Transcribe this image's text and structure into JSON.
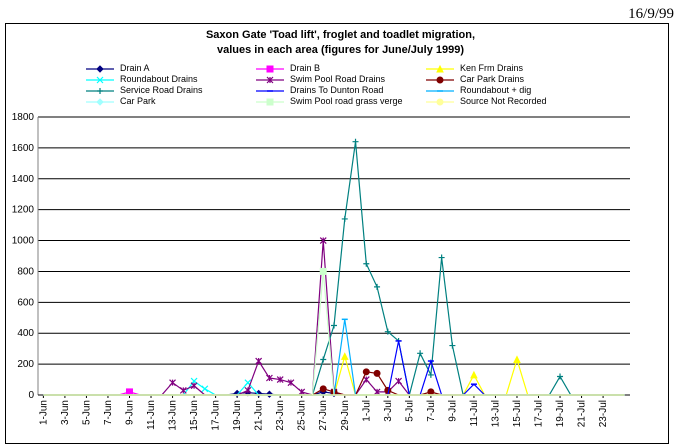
{
  "header": {
    "date": "16/9/99"
  },
  "chart_data": {
    "type": "line",
    "title": "Saxon Gate 'Toad lift', froglet and toadlet migration,",
    "subtitle": "values in each area (figures for June/July 1999)",
    "xlabel": "",
    "ylabel": "",
    "ylim": [
      0,
      1800
    ],
    "yticks": [
      0,
      200,
      400,
      600,
      800,
      1000,
      1200,
      1400,
      1600,
      1800
    ],
    "grid": "horizontal",
    "legend": "top",
    "categories": [
      "1-Jun",
      "2-Jun",
      "3-Jun",
      "4-Jun",
      "5-Jun",
      "6-Jun",
      "7-Jun",
      "8-Jun",
      "9-Jun",
      "10-Jun",
      "11-Jun",
      "12-Jun",
      "13-Jun",
      "14-Jun",
      "15-Jun",
      "16-Jun",
      "17-Jun",
      "18-Jun",
      "19-Jun",
      "20-Jun",
      "21-Jun",
      "22-Jun",
      "23-Jun",
      "24-Jun",
      "25-Jun",
      "26-Jun",
      "27-Jun",
      "28-Jun",
      "29-Jun",
      "30-Jun",
      "1-Jul",
      "2-Jul",
      "3-Jul",
      "4-Jul",
      "5-Jul",
      "6-Jul",
      "7-Jul",
      "8-Jul",
      "9-Jul",
      "10-Jul",
      "11-Jul",
      "12-Jul",
      "13-Jul",
      "14-Jul",
      "15-Jul",
      "16-Jul",
      "17-Jul",
      "18-Jul",
      "19-Jul",
      "20-Jul",
      "21-Jul",
      "22-Jul",
      "23-Jul",
      "24-Jul",
      "25-Jul"
    ],
    "xtick_labels": [
      "1-Jun",
      "3-Jun",
      "5-Jun",
      "7-Jun",
      "9-Jun",
      "11-Jun",
      "13-Jun",
      "15-Jun",
      "17-Jun",
      "19-Jun",
      "21-Jun",
      "23-Jun",
      "25-Jun",
      "27-Jun",
      "29-Jun",
      "1-Jul",
      "3-Jul",
      "5-Jul",
      "7-Jul",
      "9-Jul",
      "11-Jul",
      "13-Jul",
      "15-Jul",
      "17-Jul",
      "19-Jul",
      "21-Jul",
      "23-Jul"
    ],
    "series": [
      {
        "name": "Drain A",
        "color": "#000080",
        "marker": "diamond",
        "dash": "",
        "values": [
          0,
          0,
          0,
          0,
          0,
          0,
          0,
          0,
          0,
          0,
          0,
          0,
          0,
          0,
          0,
          0,
          0,
          0,
          10,
          15,
          10,
          5,
          0,
          0,
          0,
          0,
          20,
          10,
          0,
          0,
          0,
          0,
          0,
          0,
          0,
          0,
          0,
          0,
          0,
          0,
          0,
          0,
          0,
          0,
          0,
          0,
          0,
          0,
          0,
          0,
          0,
          0,
          0,
          0,
          0
        ]
      },
      {
        "name": "Drain B",
        "color": "#ff00ff",
        "marker": "square",
        "dash": "",
        "values": [
          0,
          0,
          0,
          0,
          0,
          0,
          0,
          0,
          20,
          0,
          0,
          0,
          0,
          0,
          0,
          0,
          0,
          0,
          0,
          0,
          0,
          0,
          0,
          0,
          0,
          0,
          0,
          0,
          0,
          0,
          0,
          0,
          0,
          0,
          0,
          0,
          0,
          0,
          0,
          0,
          0,
          0,
          0,
          0,
          0,
          0,
          0,
          0,
          0,
          0,
          0,
          0,
          0,
          0,
          0
        ]
      },
      {
        "name": "Ken Frm Drains",
        "color": "#ffff00",
        "marker": "triangle",
        "dash": "",
        "values": [
          0,
          0,
          0,
          0,
          0,
          0,
          0,
          0,
          0,
          0,
          0,
          0,
          0,
          0,
          0,
          0,
          0,
          0,
          0,
          0,
          0,
          0,
          0,
          0,
          0,
          0,
          0,
          0,
          250,
          0,
          0,
          0,
          0,
          0,
          0,
          0,
          0,
          0,
          0,
          0,
          130,
          0,
          0,
          0,
          230,
          0,
          0,
          0,
          0,
          0,
          0,
          0,
          0,
          0,
          0
        ]
      },
      {
        "name": "Roundabout Drains",
        "color": "#00ffff",
        "marker": "x",
        "dash": "",
        "values": [
          0,
          0,
          0,
          0,
          0,
          0,
          0,
          0,
          0,
          0,
          0,
          0,
          0,
          0,
          90,
          40,
          0,
          0,
          0,
          80,
          0,
          0,
          0,
          0,
          0,
          0,
          0,
          0,
          0,
          0,
          0,
          0,
          0,
          0,
          0,
          0,
          0,
          0,
          0,
          0,
          0,
          0,
          0,
          0,
          0,
          0,
          0,
          0,
          0,
          0,
          0,
          0,
          0,
          0,
          0
        ]
      },
      {
        "name": "Swim Pool Road Drains",
        "color": "#800080",
        "marker": "star",
        "dash": "",
        "values": [
          0,
          0,
          0,
          0,
          0,
          0,
          0,
          0,
          0,
          0,
          0,
          0,
          80,
          30,
          60,
          0,
          0,
          0,
          0,
          30,
          220,
          110,
          100,
          80,
          20,
          0,
          1000,
          20,
          0,
          0,
          100,
          20,
          20,
          90,
          0,
          0,
          0,
          0,
          0,
          0,
          0,
          0,
          0,
          0,
          0,
          0,
          0,
          0,
          0,
          0,
          0,
          0,
          0,
          0,
          0
        ]
      },
      {
        "name": "Car Park Drains",
        "color": "#800000",
        "marker": "circle",
        "dash": "",
        "values": [
          0,
          0,
          0,
          0,
          0,
          0,
          0,
          0,
          0,
          0,
          0,
          0,
          0,
          0,
          0,
          0,
          0,
          0,
          0,
          0,
          0,
          0,
          0,
          0,
          0,
          0,
          40,
          20,
          0,
          0,
          150,
          140,
          30,
          0,
          0,
          0,
          20,
          0,
          0,
          0,
          0,
          0,
          0,
          0,
          0,
          0,
          0,
          0,
          0,
          0,
          0,
          0,
          0,
          0,
          0
        ]
      },
      {
        "name": "Service Road Drains",
        "color": "#008080",
        "marker": "plus",
        "dash": "",
        "values": [
          0,
          0,
          0,
          0,
          0,
          0,
          0,
          0,
          0,
          0,
          0,
          0,
          0,
          0,
          0,
          0,
          0,
          0,
          0,
          0,
          0,
          0,
          0,
          0,
          0,
          0,
          230,
          450,
          1140,
          1640,
          850,
          700,
          410,
          350,
          0,
          270,
          130,
          890,
          320,
          0,
          0,
          0,
          0,
          0,
          0,
          0,
          0,
          0,
          120,
          0,
          0,
          0,
          0,
          0,
          0
        ]
      },
      {
        "name": "Drains To Dunton Road",
        "color": "#0000ff",
        "marker": "dash",
        "dash": "",
        "values": [
          0,
          0,
          0,
          0,
          0,
          0,
          0,
          0,
          0,
          0,
          0,
          0,
          0,
          0,
          0,
          0,
          0,
          0,
          0,
          0,
          0,
          0,
          0,
          0,
          0,
          0,
          0,
          0,
          0,
          0,
          0,
          0,
          0,
          350,
          0,
          0,
          220,
          0,
          0,
          0,
          70,
          0,
          0,
          0,
          0,
          0,
          0,
          0,
          0,
          0,
          0,
          0,
          0,
          0,
          0
        ]
      },
      {
        "name": "Roundabout + dig",
        "color": "#00b0ff",
        "marker": "dash",
        "dash": "",
        "values": [
          0,
          0,
          0,
          0,
          0,
          0,
          0,
          0,
          0,
          0,
          0,
          0,
          0,
          0,
          0,
          0,
          0,
          0,
          0,
          0,
          0,
          0,
          0,
          0,
          0,
          0,
          0,
          0,
          490,
          0,
          0,
          0,
          0,
          0,
          0,
          0,
          0,
          0,
          0,
          0,
          0,
          0,
          0,
          0,
          0,
          0,
          0,
          0,
          0,
          0,
          0,
          0,
          0,
          0,
          0
        ]
      },
      {
        "name": "Car Park",
        "color": "#a0ffff",
        "marker": "diamond",
        "dash": "",
        "values": [
          0,
          0,
          0,
          0,
          0,
          0,
          0,
          0,
          0,
          0,
          0,
          0,
          0,
          0,
          0,
          0,
          0,
          0,
          0,
          0,
          0,
          0,
          0,
          0,
          0,
          0,
          0,
          0,
          0,
          0,
          0,
          0,
          0,
          0,
          0,
          0,
          0,
          0,
          0,
          0,
          0,
          0,
          0,
          0,
          0,
          0,
          0,
          0,
          0,
          0,
          0,
          0,
          0,
          0,
          0
        ]
      },
      {
        "name": "Swim Pool road grass verge",
        "color": "#ccffcc",
        "marker": "square",
        "dash": "",
        "values": [
          0,
          0,
          0,
          0,
          0,
          0,
          0,
          0,
          0,
          0,
          0,
          0,
          0,
          0,
          0,
          0,
          0,
          0,
          0,
          0,
          0,
          0,
          0,
          0,
          0,
          0,
          800,
          0,
          0,
          0,
          0,
          0,
          0,
          0,
          0,
          0,
          0,
          0,
          0,
          0,
          0,
          0,
          0,
          0,
          0,
          0,
          0,
          0,
          0,
          0,
          0,
          0,
          0,
          0,
          0
        ]
      },
      {
        "name": "Source Not Recorded",
        "color": "#ffff99",
        "marker": "circle",
        "dash": "",
        "values": [
          0,
          0,
          0,
          0,
          0,
          0,
          0,
          0,
          0,
          0,
          0,
          0,
          0,
          0,
          0,
          0,
          0,
          0,
          0,
          0,
          0,
          0,
          0,
          0,
          0,
          0,
          0,
          0,
          0,
          0,
          0,
          0,
          0,
          0,
          0,
          0,
          0,
          0,
          0,
          0,
          0,
          0,
          0,
          0,
          0,
          0,
          0,
          0,
          0,
          0,
          0,
          0,
          0,
          0,
          0
        ]
      }
    ]
  }
}
